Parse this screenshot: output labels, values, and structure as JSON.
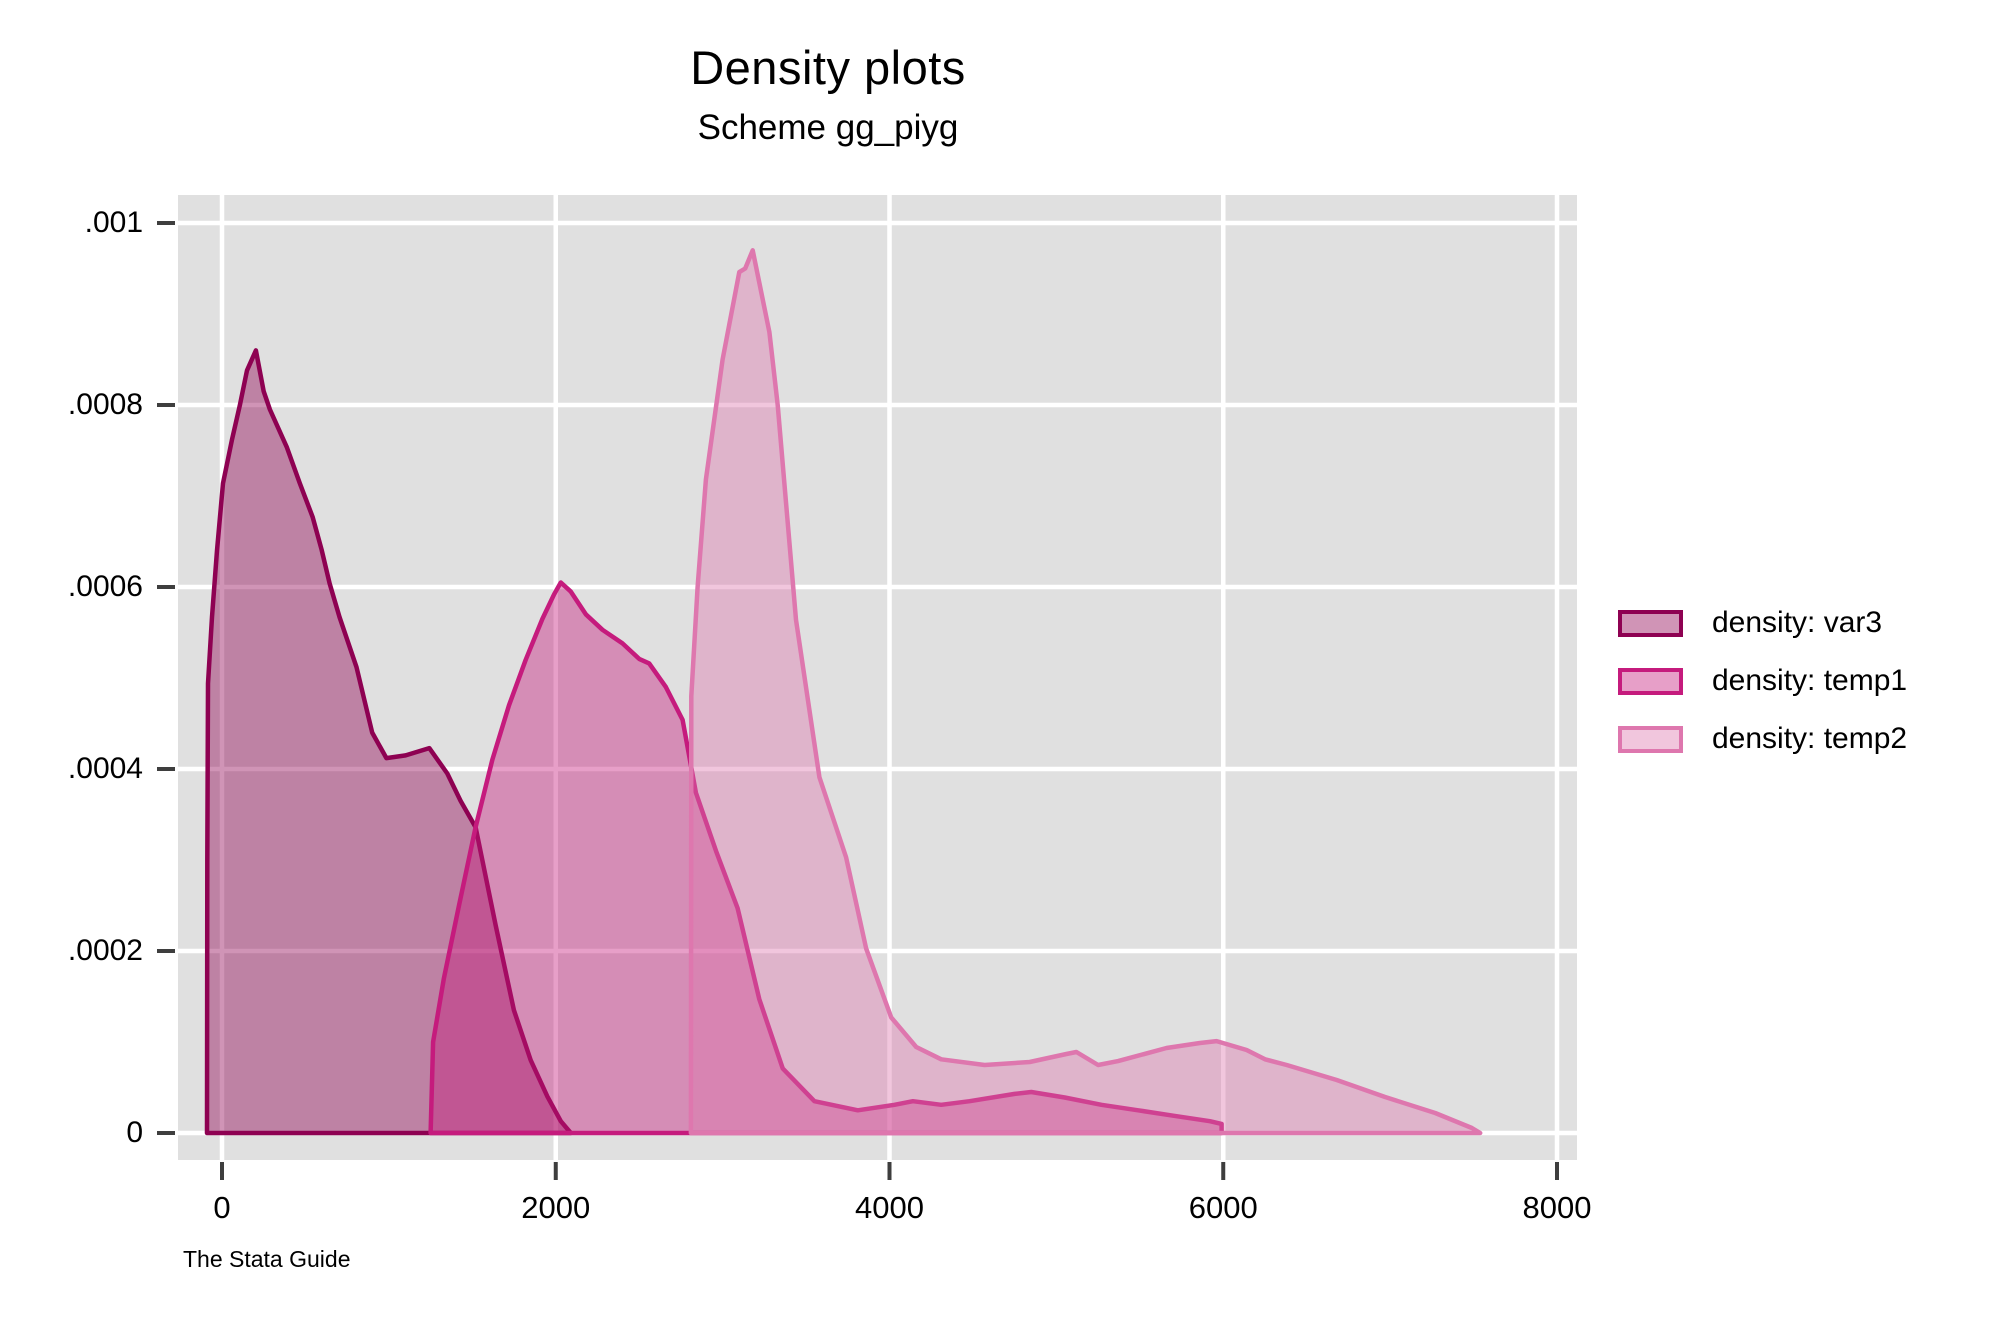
{
  "figure": {
    "title": "Density plots",
    "subtitle": "Scheme gg_piyg",
    "caption": "The Stata Guide"
  },
  "chart_data": {
    "type": "area",
    "title": "Density plots",
    "subtitle": "Scheme gg_piyg",
    "caption": "The Stata Guide",
    "xlabel": "",
    "ylabel": "",
    "grid": true,
    "plot_bg_color": "#E0E0E0",
    "gridline_color": "#FFFFFF",
    "tick_color": "#3E3E3E",
    "text_color": "#000000",
    "fill_opacity": 0.42,
    "x_axis": {
      "tick_values": [
        0,
        2000,
        4000,
        6000,
        8000
      ],
      "tick_labels": [
        "0",
        "2000",
        "4000",
        "6000",
        "8000"
      ],
      "range": [
        -265,
        8120
      ]
    },
    "y_axis": {
      "tick_values": [
        0,
        0.0002,
        0.0004,
        0.0006,
        0.0008,
        0.001
      ],
      "tick_labels": [
        "0",
        ".0002",
        ".0004",
        ".0006",
        ".0008",
        ".001"
      ],
      "range": [
        0,
        0.00106
      ]
    },
    "legend": {
      "position": "right",
      "items": [
        {
          "label": "density: var3",
          "color": "#8E0152"
        },
        {
          "label": "density: temp1",
          "color": "#C51B7D"
        },
        {
          "label": "density: temp2",
          "color": "#DE77AE"
        }
      ]
    },
    "series": [
      {
        "name": "density: var3",
        "color": "#8E0152",
        "points": [
          [
            -90,
            0
          ],
          [
            -88,
            0.0003
          ],
          [
            -84,
            0.000494
          ],
          [
            -60,
            0.000567
          ],
          [
            -30,
            0.00064
          ],
          [
            6,
            0.000714
          ],
          [
            60,
            0.000762
          ],
          [
            107,
            0.0008
          ],
          [
            150,
            0.000838
          ],
          [
            203,
            0.00086
          ],
          [
            250,
            0.000815
          ],
          [
            287,
            0.000795
          ],
          [
            388,
            0.000754
          ],
          [
            466,
            0.000714
          ],
          [
            543,
            0.000677
          ],
          [
            597,
            0.000641
          ],
          [
            645,
            0.000604
          ],
          [
            704,
            0.000567
          ],
          [
            806,
            0.000512
          ],
          [
            900,
            0.00044
          ],
          [
            985,
            0.000412
          ],
          [
            1100,
            0.000415
          ],
          [
            1242,
            0.000423
          ],
          [
            1350,
            0.000395
          ],
          [
            1430,
            0.000365
          ],
          [
            1520,
            0.000336
          ],
          [
            1640,
            0.000228
          ],
          [
            1749,
            0.000135
          ],
          [
            1850,
            8e-05
          ],
          [
            1950,
            4e-05
          ],
          [
            2030,
            1.3e-05
          ],
          [
            2090,
            0
          ]
        ]
      },
      {
        "name": "density: temp1",
        "color": "#C51B7D",
        "points": [
          [
            1250,
            0
          ],
          [
            1265,
            0.0001
          ],
          [
            1330,
            0.00017
          ],
          [
            1420,
            0.00025
          ],
          [
            1520,
            0.000336
          ],
          [
            1620,
            0.00041
          ],
          [
            1720,
            0.00047
          ],
          [
            1820,
            0.00052
          ],
          [
            1920,
            0.000565
          ],
          [
            1990,
            0.000592
          ],
          [
            2030,
            0.000605
          ],
          [
            2090,
            0.000595
          ],
          [
            2180,
            0.00057
          ],
          [
            2280,
            0.000553
          ],
          [
            2400,
            0.000538
          ],
          [
            2500,
            0.000521
          ],
          [
            2560,
            0.000516
          ],
          [
            2660,
            0.00049
          ],
          [
            2760,
            0.000454
          ],
          [
            2840,
            0.000374
          ],
          [
            2960,
            0.00031
          ],
          [
            3090,
            0.000247
          ],
          [
            3220,
            0.000147
          ],
          [
            3360,
            7.1e-05
          ],
          [
            3550,
            3.5e-05
          ],
          [
            3810,
            2.5e-05
          ],
          [
            4030,
            3.1e-05
          ],
          [
            4140,
            3.5e-05
          ],
          [
            4310,
            3.1e-05
          ],
          [
            4480,
            3.5e-05
          ],
          [
            4750,
            4.3e-05
          ],
          [
            4850,
            4.5e-05
          ],
          [
            5050,
            3.9e-05
          ],
          [
            5270,
            3.1e-05
          ],
          [
            5490,
            2.5e-05
          ],
          [
            5700,
            1.9e-05
          ],
          [
            5920,
            1.3e-05
          ],
          [
            5990,
            1e-05
          ],
          [
            5990,
            0
          ]
        ]
      },
      {
        "name": "density: temp2",
        "color": "#DE77AE",
        "points": [
          [
            2810,
            0
          ],
          [
            2812,
            0.00048
          ],
          [
            2850,
            0.0006
          ],
          [
            2900,
            0.000718
          ],
          [
            3000,
            0.00085
          ],
          [
            3100,
            0.000946
          ],
          [
            3135,
            0.00095
          ],
          [
            3180,
            0.00097
          ],
          [
            3280,
            0.00088
          ],
          [
            3330,
            0.0008
          ],
          [
            3440,
            0.000564
          ],
          [
            3580,
            0.000391
          ],
          [
            3740,
            0.000303
          ],
          [
            3860,
            0.000203
          ],
          [
            4010,
            0.000127
          ],
          [
            4160,
            9.45e-05
          ],
          [
            4310,
            8.1e-05
          ],
          [
            4570,
            7.47e-05
          ],
          [
            4840,
            7.8e-05
          ],
          [
            5060,
            8.68e-05
          ],
          [
            5120,
            8.9e-05
          ],
          [
            5250,
            7.47e-05
          ],
          [
            5370,
            7.9e-05
          ],
          [
            5660,
            9.34e-05
          ],
          [
            5860,
            9.89e-05
          ],
          [
            5960,
            0.000101
          ],
          [
            6140,
            9.12e-05
          ],
          [
            6250,
            8.1e-05
          ],
          [
            6380,
            7.47e-05
          ],
          [
            6680,
            5.82e-05
          ],
          [
            6970,
            3.96e-05
          ],
          [
            7270,
            2.2e-05
          ],
          [
            7490,
            5.5e-06
          ],
          [
            7540,
            0
          ]
        ]
      }
    ]
  }
}
